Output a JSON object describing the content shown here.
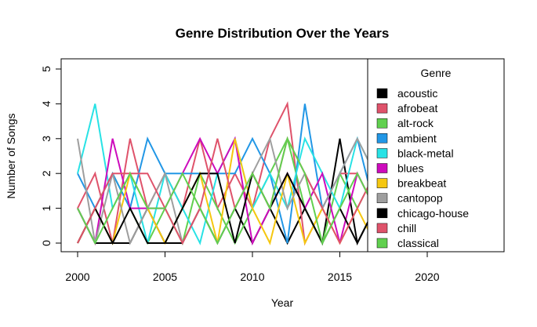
{
  "chart_data": {
    "type": "line",
    "title": "Genre Distribution Over the Years",
    "xlabel": "Year",
    "ylabel": "Number of Songs",
    "xlim": [
      2000,
      2023.5
    ],
    "ylim": [
      0,
      5
    ],
    "x_ticks": [
      2000,
      2005,
      2010,
      2015,
      2020
    ],
    "y_ticks": [
      0,
      1,
      2,
      3,
      4,
      5
    ],
    "grid": false,
    "legend": {
      "title": "Genre",
      "placement": "right, overlapping plot"
    },
    "x": [
      2000,
      2001,
      2002,
      2003,
      2004,
      2005,
      2006,
      2007,
      2008,
      2009,
      2010,
      2011,
      2012,
      2013,
      2014,
      2015,
      2016,
      2017
    ],
    "series": [
      {
        "name": "acoustic",
        "color": "#000000",
        "values": [
          1,
          0,
          0,
          0,
          1,
          0,
          0,
          1,
          0,
          1,
          0,
          1,
          0,
          1,
          0,
          3,
          0,
          1
        ]
      },
      {
        "name": "afrobeat",
        "color": "#DF536B",
        "values": [
          1,
          2,
          0,
          3,
          1,
          2,
          1,
          3,
          1,
          2,
          1,
          3,
          4,
          0,
          1,
          2,
          2,
          1
        ]
      },
      {
        "name": "alt-rock",
        "color": "#61D04F",
        "values": [
          0,
          1,
          2,
          1,
          0,
          1,
          0,
          2,
          1,
          0,
          1,
          2,
          3,
          1,
          0,
          2,
          1,
          2
        ]
      },
      {
        "name": "ambient",
        "color": "#2297E6",
        "values": [
          2,
          1,
          2,
          1,
          3,
          2,
          2,
          2,
          2,
          2,
          3,
          2,
          0,
          4,
          1,
          2,
          3,
          1
        ]
      },
      {
        "name": "black-metal",
        "color": "#28E2E5",
        "values": [
          2,
          4,
          1,
          2,
          0,
          2,
          1,
          0,
          2,
          3,
          1,
          2,
          1,
          3,
          2,
          1,
          3,
          2
        ]
      },
      {
        "name": "blues",
        "color": "#CD0BBC",
        "values": [
          1,
          0,
          3,
          1,
          1,
          1,
          2,
          3,
          2,
          3,
          0,
          1,
          2,
          1,
          2,
          0,
          2,
          1
        ]
      },
      {
        "name": "breakbeat",
        "color": "#F5C710",
        "values": [
          0,
          1,
          0,
          2,
          1,
          0,
          1,
          2,
          0,
          3,
          1,
          0,
          2,
          0,
          1,
          0,
          1,
          0
        ]
      },
      {
        "name": "cantopop",
        "color": "#9E9E9E",
        "values": [
          3,
          0,
          2,
          0,
          1,
          2,
          0,
          1,
          0,
          1,
          2,
          3,
          1,
          2,
          1,
          2,
          3,
          2
        ]
      },
      {
        "name": "chicago-house",
        "color": "#000000",
        "values": [
          0,
          1,
          0,
          1,
          0,
          0,
          1,
          2,
          2,
          0,
          2,
          1,
          2,
          1,
          0,
          1,
          0,
          1
        ]
      },
      {
        "name": "chill",
        "color": "#DF536B",
        "values": [
          0,
          1,
          2,
          2,
          2,
          1,
          0,
          1,
          3,
          1,
          2,
          1,
          3,
          2,
          1,
          0,
          1,
          2
        ]
      },
      {
        "name": "classical",
        "color": "#61D04F",
        "values": [
          1,
          0,
          1,
          2,
          1,
          1,
          2,
          1,
          0,
          1,
          2,
          1,
          3,
          2,
          0,
          1,
          2,
          1
        ]
      }
    ]
  }
}
